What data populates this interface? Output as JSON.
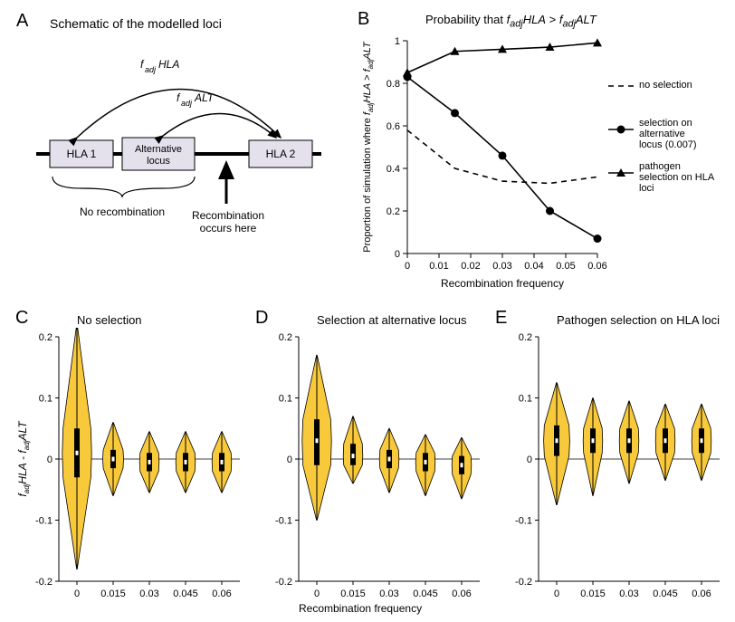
{
  "panelA": {
    "label": "A",
    "title": "Schematic of the modelled loci",
    "boxes": {
      "hla1": "HLA 1",
      "alt": "Alternative locus",
      "hla2": "HLA 2"
    },
    "arcs": {
      "outer": "f_adj HLA",
      "inner": "f_adj ALT"
    },
    "braces": {
      "left": "No recombination",
      "arrow": "Recombination occurs here"
    },
    "colors": {
      "box_fill": "#e5e1ec",
      "box_stroke": "#000000",
      "line": "#000000"
    }
  },
  "panelB": {
    "label": "B",
    "title": "Probability that f_adj HLA > f_adj ALT",
    "xlabel": "Recombination frequency",
    "ylabel": "Proportion of simulation where f_adj HLA > f_adj ALT",
    "xlim": [
      0,
      0.06
    ],
    "ylim": [
      0,
      1
    ],
    "xticks": [
      0,
      0.01,
      0.02,
      0.03,
      0.04,
      0.05,
      0.06
    ],
    "yticks": [
      0,
      0.2,
      0.4,
      0.6,
      0.8,
      1
    ],
    "series": [
      {
        "name": "no selection",
        "legend": "no selection",
        "style": "dashed",
        "marker": "none",
        "color": "#000000",
        "x": [
          0,
          0.015,
          0.03,
          0.045,
          0.06
        ],
        "y": [
          0.58,
          0.4,
          0.34,
          0.33,
          0.36
        ]
      },
      {
        "name": "selection on alternative locus",
        "legend": "selection on alternative locus (0.007)",
        "style": "solid",
        "marker": "circle",
        "color": "#000000",
        "x": [
          0,
          0.015,
          0.03,
          0.045,
          0.06
        ],
        "y": [
          0.83,
          0.66,
          0.46,
          0.2,
          0.07
        ]
      },
      {
        "name": "pathogen selection on HLA loci",
        "legend": "pathogen selection on HLA loci",
        "style": "solid",
        "marker": "triangle",
        "color": "#000000",
        "x": [
          0,
          0.015,
          0.03,
          0.045,
          0.06
        ],
        "y": [
          0.85,
          0.95,
          0.96,
          0.97,
          0.99
        ]
      }
    ]
  },
  "panelsCDE": {
    "xlabel": "Recombination frequency",
    "ylabel": "f_adj HLA - f_adj ALT",
    "xticks": [
      0,
      0.015,
      0.03,
      0.045,
      0.06
    ],
    "yticks": [
      -0.2,
      -0.1,
      0,
      0.1,
      0.2
    ],
    "ylim": [
      -0.2,
      0.2
    ],
    "violin_fill": "#f8c93a",
    "violin_stroke": "#000000",
    "panels": [
      {
        "label": "C",
        "title": "No selection",
        "violins": [
          {
            "x": 0,
            "median": 0.01,
            "q1": -0.03,
            "q3": 0.05,
            "whisker_lo": -0.18,
            "whisker_hi": 0.22,
            "maxw": 0.45
          },
          {
            "x": 0.015,
            "median": 0.0,
            "q1": -0.015,
            "q3": 0.015,
            "whisker_lo": -0.06,
            "whisker_hi": 0.06,
            "maxw": 0.32
          },
          {
            "x": 0.03,
            "median": -0.005,
            "q1": -0.02,
            "q3": 0.01,
            "whisker_lo": -0.055,
            "whisker_hi": 0.045,
            "maxw": 0.3
          },
          {
            "x": 0.045,
            "median": -0.005,
            "q1": -0.02,
            "q3": 0.01,
            "whisker_lo": -0.055,
            "whisker_hi": 0.045,
            "maxw": 0.3
          },
          {
            "x": 0.06,
            "median": -0.005,
            "q1": -0.02,
            "q3": 0.01,
            "whisker_lo": -0.055,
            "whisker_hi": 0.045,
            "maxw": 0.3
          }
        ]
      },
      {
        "label": "D",
        "title": "Selection at alternative locus",
        "violins": [
          {
            "x": 0,
            "median": 0.03,
            "q1": -0.01,
            "q3": 0.065,
            "whisker_lo": -0.1,
            "whisker_hi": 0.17,
            "maxw": 0.45
          },
          {
            "x": 0.015,
            "median": 0.005,
            "q1": -0.01,
            "q3": 0.025,
            "whisker_lo": -0.04,
            "whisker_hi": 0.07,
            "maxw": 0.3
          },
          {
            "x": 0.03,
            "median": 0.0,
            "q1": -0.015,
            "q3": 0.015,
            "whisker_lo": -0.055,
            "whisker_hi": 0.05,
            "maxw": 0.3
          },
          {
            "x": 0.045,
            "median": -0.005,
            "q1": -0.02,
            "q3": 0.01,
            "whisker_lo": -0.06,
            "whisker_hi": 0.04,
            "maxw": 0.3
          },
          {
            "x": 0.06,
            "median": -0.01,
            "q1": -0.025,
            "q3": 0.005,
            "whisker_lo": -0.065,
            "whisker_hi": 0.035,
            "maxw": 0.3
          }
        ]
      },
      {
        "label": "E",
        "title": "Pathogen selection on HLA loci",
        "violins": [
          {
            "x": 0,
            "median": 0.03,
            "q1": 0.005,
            "q3": 0.055,
            "whisker_lo": -0.075,
            "whisker_hi": 0.125,
            "maxw": 0.4
          },
          {
            "x": 0.015,
            "median": 0.03,
            "q1": 0.01,
            "q3": 0.05,
            "whisker_lo": -0.06,
            "whisker_hi": 0.1,
            "maxw": 0.3
          },
          {
            "x": 0.03,
            "median": 0.03,
            "q1": 0.01,
            "q3": 0.05,
            "whisker_lo": -0.04,
            "whisker_hi": 0.095,
            "maxw": 0.3
          },
          {
            "x": 0.045,
            "median": 0.03,
            "q1": 0.01,
            "q3": 0.05,
            "whisker_lo": -0.035,
            "whisker_hi": 0.09,
            "maxw": 0.3
          },
          {
            "x": 0.06,
            "median": 0.03,
            "q1": 0.01,
            "q3": 0.05,
            "whisker_lo": -0.035,
            "whisker_hi": 0.09,
            "maxw": 0.3
          }
        ]
      }
    ]
  }
}
